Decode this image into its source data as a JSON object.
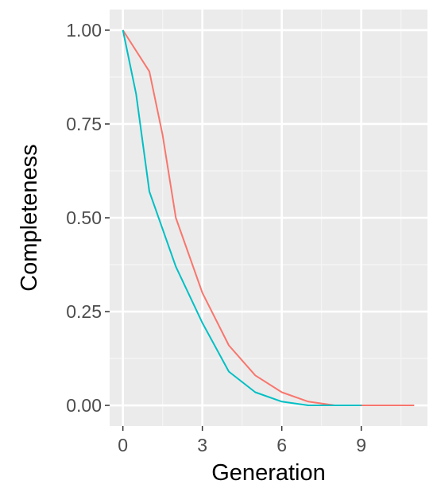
{
  "chart_data": {
    "type": "line",
    "title": "",
    "xlabel": "Generation",
    "ylabel": "Completeness",
    "xlim": [
      -0.5,
      11.5
    ],
    "ylim": [
      -0.055,
      1.055
    ],
    "x_ticks": [
      0,
      3,
      6,
      9
    ],
    "x_tick_labels": [
      "0",
      "3",
      "6",
      "9"
    ],
    "y_ticks": [
      0,
      0.25,
      0.5,
      0.75,
      1.0
    ],
    "y_tick_labels": [
      "0.00",
      "0.25",
      "0.50",
      "0.75",
      "1.00"
    ],
    "grid": true,
    "legend": "none",
    "series": [
      {
        "color": "#F8766D",
        "x": [
          0,
          1,
          1.5,
          2,
          3,
          4,
          5,
          6,
          7,
          8,
          9,
          10,
          11
        ],
        "values": [
          1.0,
          0.89,
          0.72,
          0.5,
          0.3,
          0.16,
          0.08,
          0.035,
          0.01,
          0.0,
          0.0,
          0.0,
          0.0
        ]
      },
      {
        "color": "#00BFC4",
        "x": [
          0,
          0.5,
          1,
          2,
          3,
          4,
          5,
          6,
          7,
          8,
          9
        ],
        "values": [
          1.0,
          0.83,
          0.57,
          0.37,
          0.22,
          0.09,
          0.035,
          0.01,
          0.0,
          0.0,
          0.0
        ]
      }
    ]
  }
}
